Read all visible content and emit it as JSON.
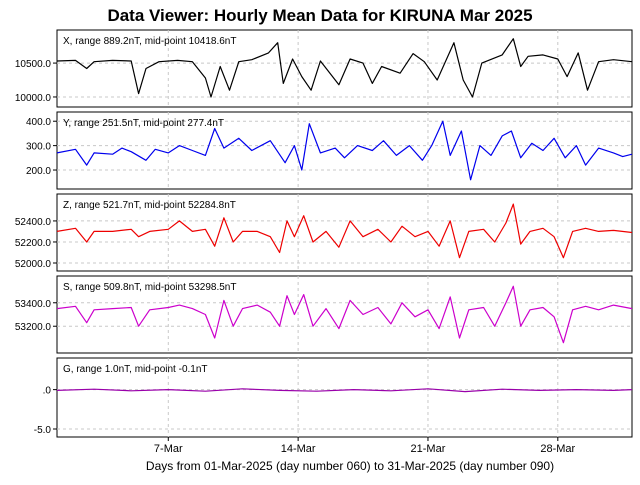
{
  "title": "Data Viewer:  Hourly Mean Data for KIRUNA Mar 2025",
  "footer": "Days from 01-Mar-2025 (day number 060) to 31-Mar-2025 (day number 090)",
  "colors": {
    "X": "#000000",
    "Y": "#0000ee",
    "Z": "#ee0000",
    "S": "#cc00cc",
    "G": "#9900aa",
    "grid": "#c8c8c8"
  },
  "chart_data": {
    "type": "line",
    "x_unit": "day of March 2025",
    "x_range": [
      1,
      32
    ],
    "x_ticks": [
      {
        "day": 7,
        "label": "7-Mar"
      },
      {
        "day": 14,
        "label": "14-Mar"
      },
      {
        "day": 21,
        "label": "21-Mar"
      },
      {
        "day": 28,
        "label": "28-Mar"
      }
    ],
    "grid": true,
    "panels": [
      {
        "name": "X",
        "label": "X, range 889.2nT, mid-point 10418.6nT",
        "ylim": [
          9970,
          10870
        ],
        "yticks": [
          {
            "value": 10000,
            "label": "10000.0"
          },
          {
            "value": 10500,
            "label": "10500.0"
          }
        ],
        "series": [
          {
            "x": 1.0,
            "y": 10530
          },
          {
            "x": 2.0,
            "y": 10540
          },
          {
            "x": 2.6,
            "y": 10420
          },
          {
            "x": 3.0,
            "y": 10520
          },
          {
            "x": 4.0,
            "y": 10540
          },
          {
            "x": 5.0,
            "y": 10530
          },
          {
            "x": 5.4,
            "y": 10050
          },
          {
            "x": 5.8,
            "y": 10420
          },
          {
            "x": 6.5,
            "y": 10520
          },
          {
            "x": 7.5,
            "y": 10540
          },
          {
            "x": 8.3,
            "y": 10520
          },
          {
            "x": 9.0,
            "y": 10280
          },
          {
            "x": 9.3,
            "y": 10000
          },
          {
            "x": 9.8,
            "y": 10450
          },
          {
            "x": 10.3,
            "y": 10100
          },
          {
            "x": 10.8,
            "y": 10520
          },
          {
            "x": 11.5,
            "y": 10550
          },
          {
            "x": 12.4,
            "y": 10650
          },
          {
            "x": 12.9,
            "y": 10800
          },
          {
            "x": 13.2,
            "y": 10200
          },
          {
            "x": 13.7,
            "y": 10560
          },
          {
            "x": 14.2,
            "y": 10300
          },
          {
            "x": 14.7,
            "y": 10100
          },
          {
            "x": 15.2,
            "y": 10530
          },
          {
            "x": 16.2,
            "y": 10180
          },
          {
            "x": 16.8,
            "y": 10560
          },
          {
            "x": 17.5,
            "y": 10500
          },
          {
            "x": 18.0,
            "y": 10200
          },
          {
            "x": 18.5,
            "y": 10450
          },
          {
            "x": 19.5,
            "y": 10350
          },
          {
            "x": 20.2,
            "y": 10640
          },
          {
            "x": 20.8,
            "y": 10520
          },
          {
            "x": 21.5,
            "y": 10250
          },
          {
            "x": 22.4,
            "y": 10800
          },
          {
            "x": 22.9,
            "y": 10250
          },
          {
            "x": 23.4,
            "y": 10000
          },
          {
            "x": 23.9,
            "y": 10500
          },
          {
            "x": 25.0,
            "y": 10620
          },
          {
            "x": 25.6,
            "y": 10860
          },
          {
            "x": 26.0,
            "y": 10450
          },
          {
            "x": 26.4,
            "y": 10600
          },
          {
            "x": 27.2,
            "y": 10620
          },
          {
            "x": 28.0,
            "y": 10560
          },
          {
            "x": 28.5,
            "y": 10300
          },
          {
            "x": 29.1,
            "y": 10650
          },
          {
            "x": 29.6,
            "y": 10100
          },
          {
            "x": 30.2,
            "y": 10520
          },
          {
            "x": 31.0,
            "y": 10550
          },
          {
            "x": 32.0,
            "y": 10520
          }
        ]
      },
      {
        "name": "Y",
        "label": "Y, range 251.5nT, mid-point 277.4nT",
        "ylim": [
          155,
          405
        ],
        "yticks": [
          {
            "value": 200,
            "label": "200.0"
          },
          {
            "value": 300,
            "label": "300.0"
          },
          {
            "value": 400,
            "label": "400.0"
          }
        ],
        "series": [
          {
            "x": 1.0,
            "y": 270
          },
          {
            "x": 2.0,
            "y": 285
          },
          {
            "x": 2.6,
            "y": 220
          },
          {
            "x": 3.0,
            "y": 270
          },
          {
            "x": 4.0,
            "y": 265
          },
          {
            "x": 4.5,
            "y": 290
          },
          {
            "x": 5.0,
            "y": 275
          },
          {
            "x": 5.8,
            "y": 240
          },
          {
            "x": 6.3,
            "y": 285
          },
          {
            "x": 7.0,
            "y": 270
          },
          {
            "x": 7.6,
            "y": 300
          },
          {
            "x": 8.3,
            "y": 280
          },
          {
            "x": 9.0,
            "y": 260
          },
          {
            "x": 9.5,
            "y": 370
          },
          {
            "x": 10.0,
            "y": 290
          },
          {
            "x": 10.8,
            "y": 330
          },
          {
            "x": 11.5,
            "y": 280
          },
          {
            "x": 12.5,
            "y": 320
          },
          {
            "x": 13.3,
            "y": 230
          },
          {
            "x": 13.8,
            "y": 300
          },
          {
            "x": 14.2,
            "y": 200
          },
          {
            "x": 14.6,
            "y": 390
          },
          {
            "x": 15.2,
            "y": 270
          },
          {
            "x": 16.0,
            "y": 290
          },
          {
            "x": 16.5,
            "y": 250
          },
          {
            "x": 17.2,
            "y": 300
          },
          {
            "x": 18.0,
            "y": 280
          },
          {
            "x": 18.6,
            "y": 320
          },
          {
            "x": 19.3,
            "y": 260
          },
          {
            "x": 20.0,
            "y": 300
          },
          {
            "x": 20.7,
            "y": 240
          },
          {
            "x": 21.2,
            "y": 300
          },
          {
            "x": 21.8,
            "y": 400
          },
          {
            "x": 22.2,
            "y": 260
          },
          {
            "x": 22.8,
            "y": 360
          },
          {
            "x": 23.3,
            "y": 160
          },
          {
            "x": 23.8,
            "y": 300
          },
          {
            "x": 24.4,
            "y": 260
          },
          {
            "x": 25.0,
            "y": 340
          },
          {
            "x": 25.5,
            "y": 360
          },
          {
            "x": 26.0,
            "y": 250
          },
          {
            "x": 26.6,
            "y": 310
          },
          {
            "x": 27.2,
            "y": 280
          },
          {
            "x": 27.8,
            "y": 330
          },
          {
            "x": 28.4,
            "y": 250
          },
          {
            "x": 29.0,
            "y": 300
          },
          {
            "x": 29.5,
            "y": 220
          },
          {
            "x": 30.2,
            "y": 290
          },
          {
            "x": 31.0,
            "y": 270
          },
          {
            "x": 31.5,
            "y": 255
          },
          {
            "x": 32.0,
            "y": 265
          }
        ]
      },
      {
        "name": "Z",
        "label": "Z, range 521.7nT, mid-point 52284.8nT",
        "ylim": [
          52000,
          52580
        ],
        "yticks": [
          {
            "value": 52000,
            "label": "52000.0"
          },
          {
            "value": 52200,
            "label": "52200.0"
          },
          {
            "value": 52400,
            "label": "52400.0"
          }
        ],
        "series": [
          {
            "x": 1.0,
            "y": 52300
          },
          {
            "x": 2.0,
            "y": 52330
          },
          {
            "x": 2.6,
            "y": 52200
          },
          {
            "x": 3.0,
            "y": 52300
          },
          {
            "x": 4.0,
            "y": 52300
          },
          {
            "x": 5.0,
            "y": 52320
          },
          {
            "x": 5.4,
            "y": 52250
          },
          {
            "x": 6.0,
            "y": 52300
          },
          {
            "x": 7.0,
            "y": 52320
          },
          {
            "x": 7.6,
            "y": 52400
          },
          {
            "x": 8.3,
            "y": 52300
          },
          {
            "x": 9.0,
            "y": 52320
          },
          {
            "x": 9.5,
            "y": 52160
          },
          {
            "x": 10.0,
            "y": 52430
          },
          {
            "x": 10.5,
            "y": 52200
          },
          {
            "x": 11.0,
            "y": 52300
          },
          {
            "x": 11.8,
            "y": 52300
          },
          {
            "x": 12.5,
            "y": 52250
          },
          {
            "x": 13.0,
            "y": 52100
          },
          {
            "x": 13.4,
            "y": 52400
          },
          {
            "x": 13.8,
            "y": 52250
          },
          {
            "x": 14.3,
            "y": 52450
          },
          {
            "x": 14.8,
            "y": 52200
          },
          {
            "x": 15.5,
            "y": 52300
          },
          {
            "x": 16.2,
            "y": 52150
          },
          {
            "x": 16.8,
            "y": 52400
          },
          {
            "x": 17.5,
            "y": 52250
          },
          {
            "x": 18.3,
            "y": 52320
          },
          {
            "x": 19.0,
            "y": 52200
          },
          {
            "x": 19.6,
            "y": 52350
          },
          {
            "x": 20.3,
            "y": 52250
          },
          {
            "x": 21.0,
            "y": 52300
          },
          {
            "x": 21.6,
            "y": 52160
          },
          {
            "x": 22.2,
            "y": 52400
          },
          {
            "x": 22.7,
            "y": 52050
          },
          {
            "x": 23.2,
            "y": 52300
          },
          {
            "x": 24.0,
            "y": 52320
          },
          {
            "x": 24.6,
            "y": 52200
          },
          {
            "x": 25.2,
            "y": 52380
          },
          {
            "x": 25.6,
            "y": 52560
          },
          {
            "x": 26.0,
            "y": 52180
          },
          {
            "x": 26.5,
            "y": 52300
          },
          {
            "x": 27.2,
            "y": 52330
          },
          {
            "x": 27.8,
            "y": 52250
          },
          {
            "x": 28.3,
            "y": 52050
          },
          {
            "x": 28.8,
            "y": 52300
          },
          {
            "x": 29.5,
            "y": 52330
          },
          {
            "x": 30.2,
            "y": 52300
          },
          {
            "x": 31.0,
            "y": 52310
          },
          {
            "x": 32.0,
            "y": 52290
          }
        ]
      },
      {
        "name": "S",
        "label": "S, range 509.8nT, mid-point 53298.5nT",
        "ylim": [
          53040,
          53560
        ],
        "yticks": [
          {
            "value": 53200,
            "label": "53200.0"
          },
          {
            "value": 53400,
            "label": "53400.0"
          }
        ],
        "series": [
          {
            "x": 1.0,
            "y": 53350
          },
          {
            "x": 2.0,
            "y": 53370
          },
          {
            "x": 2.6,
            "y": 53230
          },
          {
            "x": 3.0,
            "y": 53340
          },
          {
            "x": 4.0,
            "y": 53350
          },
          {
            "x": 5.0,
            "y": 53360
          },
          {
            "x": 5.4,
            "y": 53200
          },
          {
            "x": 6.0,
            "y": 53340
          },
          {
            "x": 7.0,
            "y": 53360
          },
          {
            "x": 7.6,
            "y": 53380
          },
          {
            "x": 8.3,
            "y": 53350
          },
          {
            "x": 9.0,
            "y": 53300
          },
          {
            "x": 9.5,
            "y": 53100
          },
          {
            "x": 10.0,
            "y": 53420
          },
          {
            "x": 10.5,
            "y": 53200
          },
          {
            "x": 11.0,
            "y": 53350
          },
          {
            "x": 11.8,
            "y": 53380
          },
          {
            "x": 12.5,
            "y": 53320
          },
          {
            "x": 13.0,
            "y": 53200
          },
          {
            "x": 13.4,
            "y": 53460
          },
          {
            "x": 13.8,
            "y": 53300
          },
          {
            "x": 14.3,
            "y": 53470
          },
          {
            "x": 14.8,
            "y": 53200
          },
          {
            "x": 15.5,
            "y": 53350
          },
          {
            "x": 16.2,
            "y": 53180
          },
          {
            "x": 16.8,
            "y": 53420
          },
          {
            "x": 17.5,
            "y": 53300
          },
          {
            "x": 18.3,
            "y": 53360
          },
          {
            "x": 19.0,
            "y": 53220
          },
          {
            "x": 19.6,
            "y": 53400
          },
          {
            "x": 20.3,
            "y": 53280
          },
          {
            "x": 21.0,
            "y": 53340
          },
          {
            "x": 21.6,
            "y": 53180
          },
          {
            "x": 22.2,
            "y": 53450
          },
          {
            "x": 22.7,
            "y": 53100
          },
          {
            "x": 23.2,
            "y": 53340
          },
          {
            "x": 24.0,
            "y": 53360
          },
          {
            "x": 24.6,
            "y": 53200
          },
          {
            "x": 25.2,
            "y": 53400
          },
          {
            "x": 25.6,
            "y": 53540
          },
          {
            "x": 26.0,
            "y": 53200
          },
          {
            "x": 26.5,
            "y": 53340
          },
          {
            "x": 27.2,
            "y": 53360
          },
          {
            "x": 27.8,
            "y": 53280
          },
          {
            "x": 28.3,
            "y": 53060
          },
          {
            "x": 28.8,
            "y": 53340
          },
          {
            "x": 29.5,
            "y": 53370
          },
          {
            "x": 30.2,
            "y": 53340
          },
          {
            "x": 31.0,
            "y": 53380
          },
          {
            "x": 32.0,
            "y": 53350
          }
        ]
      },
      {
        "name": "G",
        "label": "G, range 1.0nT, mid-point -0.1nT",
        "ylim": [
          -5.0,
          3.0
        ],
        "yticks": [
          {
            "value": 0,
            "label": ".0"
          },
          {
            "value": -5,
            "label": "-5.0"
          }
        ],
        "series": [
          {
            "x": 1.0,
            "y": -0.1
          },
          {
            "x": 3.0,
            "y": 0.05
          },
          {
            "x": 5.0,
            "y": -0.15
          },
          {
            "x": 7.0,
            "y": 0.0
          },
          {
            "x": 9.0,
            "y": -0.2
          },
          {
            "x": 11.0,
            "y": 0.1
          },
          {
            "x": 13.0,
            "y": -0.1
          },
          {
            "x": 15.0,
            "y": -0.2
          },
          {
            "x": 17.0,
            "y": 0.0
          },
          {
            "x": 19.0,
            "y": -0.15
          },
          {
            "x": 21.0,
            "y": 0.1
          },
          {
            "x": 23.0,
            "y": -0.25
          },
          {
            "x": 25.0,
            "y": 0.05
          },
          {
            "x": 27.0,
            "y": -0.1
          },
          {
            "x": 29.0,
            "y": 0.0
          },
          {
            "x": 31.0,
            "y": -0.1
          },
          {
            "x": 32.0,
            "y": 0.0
          }
        ]
      }
    ]
  }
}
